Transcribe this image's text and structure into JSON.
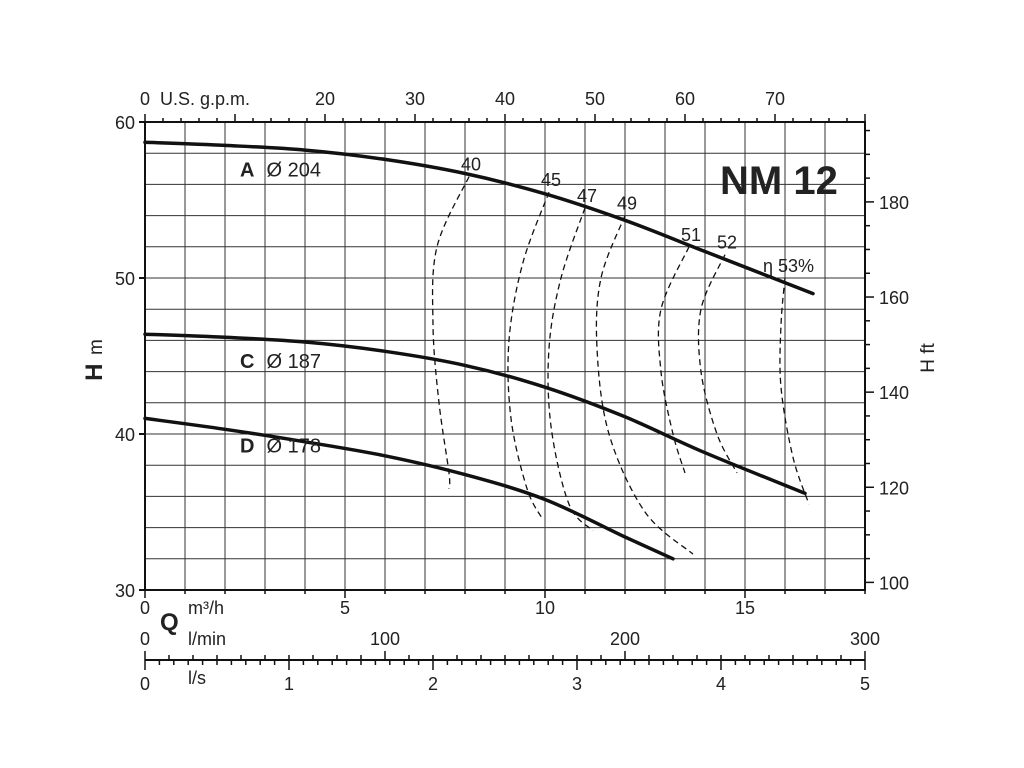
{
  "chart_data": {
    "type": "line",
    "title": "NM 12",
    "x_primary": {
      "label": "Q",
      "unit": "m³/h",
      "range": [
        0,
        18
      ],
      "ticks": [
        0,
        5,
        10,
        15
      ]
    },
    "x_lmin": {
      "unit": "l/min",
      "range": [
        0,
        300
      ],
      "ticks": [
        0,
        100,
        200,
        300
      ]
    },
    "x_ls": {
      "unit": "l/s",
      "range": [
        0,
        5
      ],
      "ticks": [
        0,
        1,
        2,
        3,
        4,
        5
      ]
    },
    "x_gpm": {
      "unit": "U.S. g.p.m.",
      "range": [
        0,
        80
      ],
      "ticks": [
        0,
        20,
        30,
        40,
        50,
        60,
        70
      ]
    },
    "y_left": {
      "label": "H",
      "unit": "m",
      "range": [
        30,
        60
      ],
      "ticks": [
        30,
        40,
        50,
        60
      ]
    },
    "y_right": {
      "label": "H ft",
      "range": [
        98.4,
        196.8
      ],
      "ticks": [
        100,
        120,
        140,
        160,
        180
      ]
    },
    "grid": true,
    "series": [
      {
        "name": "A",
        "diameter": "Ø 204",
        "x": [
          0,
          2,
          4,
          6,
          8,
          10,
          12,
          14,
          16.7
        ],
        "y": [
          58.7,
          58.5,
          58.2,
          57.6,
          56.7,
          55.4,
          53.7,
          51.7,
          49.0
        ]
      },
      {
        "name": "C",
        "diameter": "Ø 187",
        "x": [
          0,
          2,
          4,
          6,
          8,
          10,
          12,
          14,
          16.5
        ],
        "y": [
          46.4,
          46.2,
          45.9,
          45.3,
          44.4,
          43.0,
          41.1,
          38.8,
          36.2
        ]
      },
      {
        "name": "D",
        "diameter": "Ø 178",
        "x": [
          0,
          2,
          4,
          6,
          8,
          10,
          12,
          13.2
        ],
        "y": [
          41.0,
          40.3,
          39.5,
          38.6,
          37.4,
          35.8,
          33.4,
          32.0
        ]
      }
    ],
    "efficiency": {
      "prefix": "η",
      "suffix": "%",
      "curves": [
        {
          "label": "40",
          "x": [
            8.1,
            7.3,
            7.2,
            7.35,
            7.6,
            7.6
          ],
          "y": [
            56.5,
            52,
            47,
            42,
            37.5,
            36.5
          ]
        },
        {
          "label": "45",
          "x": [
            10.1,
            9.45,
            9.1,
            9.15,
            9.55,
            9.95
          ],
          "y": [
            55.5,
            51,
            46,
            41,
            36.5,
            34.5
          ]
        },
        {
          "label": "47",
          "x": [
            11.0,
            10.4,
            10.1,
            10.15,
            10.6,
            11.2
          ],
          "y": [
            54.5,
            50,
            45.5,
            40.5,
            35.5,
            33.8
          ]
        },
        {
          "label": "49",
          "x": [
            12.0,
            11.4,
            11.3,
            11.6,
            12.5,
            13.7
          ],
          "y": [
            54,
            50,
            45.5,
            40,
            35,
            32.3
          ]
        },
        {
          "label": "51",
          "x": [
            13.6,
            12.9,
            12.9,
            13.2,
            13.5
          ],
          "y": [
            52,
            48,
            44,
            40,
            37.5
          ]
        },
        {
          "label": "52",
          "x": [
            14.5,
            13.9,
            13.9,
            14.3,
            14.8
          ],
          "y": [
            51.5,
            48,
            44,
            40,
            37.5
          ]
        },
        {
          "label": "53",
          "x": [
            16.0,
            15.9,
            15.9,
            16.2,
            16.6
          ],
          "y": [
            50,
            47,
            43,
            38.5,
            35.5
          ]
        }
      ]
    },
    "curve_labels": [
      {
        "letter": "A",
        "text": "Ø 204"
      },
      {
        "letter": "C",
        "text": "Ø 187"
      },
      {
        "letter": "D",
        "text": "Ø 178"
      }
    ]
  }
}
